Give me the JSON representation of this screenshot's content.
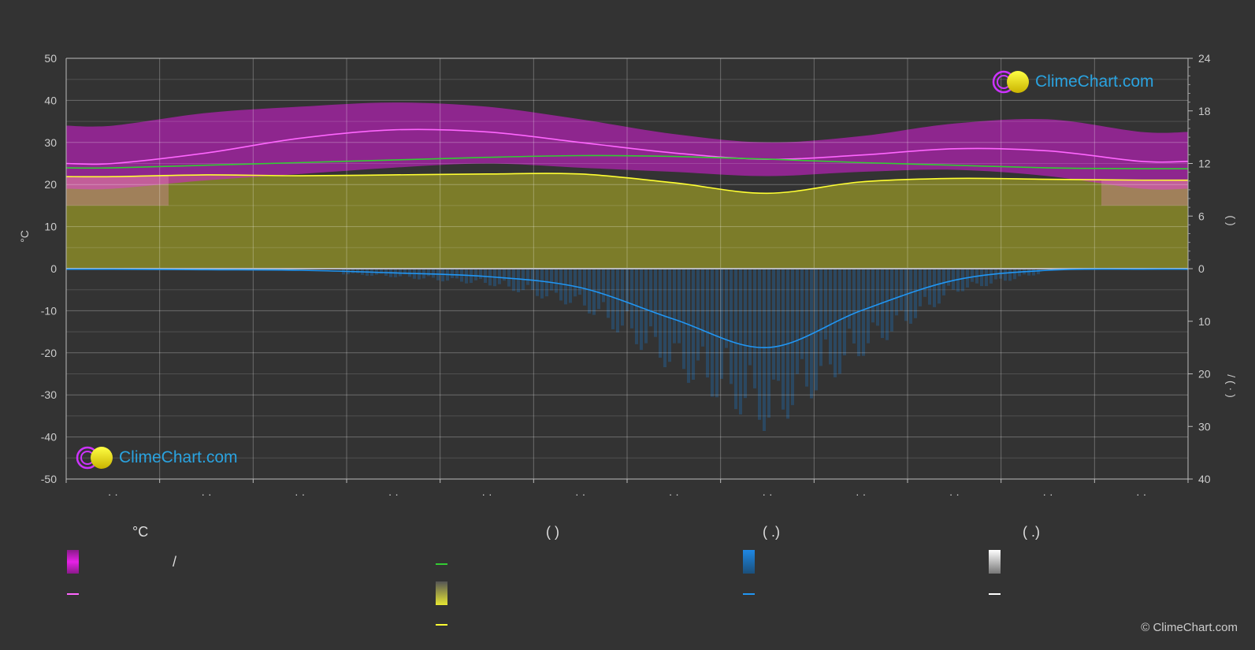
{
  "chart_data": {
    "type": "area",
    "y_left": {
      "label": "°C",
      "ticks": [
        50,
        40,
        30,
        20,
        10,
        0,
        -10,
        -20,
        -30,
        -40,
        -50
      ],
      "range": [
        -50,
        50
      ]
    },
    "y_right_top": {
      "label": "(    )",
      "ticks": [
        24,
        18,
        12,
        6,
        0
      ],
      "range": [
        0,
        24
      ]
    },
    "y_right_bottom": {
      "label": "/    (  ·  )",
      "ticks": [
        0,
        10,
        20,
        30,
        40
      ],
      "range": [
        0,
        40
      ]
    },
    "x_tick_labels": [
      "· ·",
      "· ·",
      "· ·",
      "· ·",
      "· ·",
      "· ·",
      "· ·",
      "· ·",
      "· ·",
      "· ·",
      "· ·",
      "· ·"
    ],
    "months": [
      1,
      2,
      3,
      4,
      5,
      6,
      7,
      8,
      9,
      10,
      11,
      12
    ],
    "series": [
      {
        "color": "#ff66ff",
        "axis": "temperature",
        "values": [
          25,
          27.5,
          31,
          33,
          32.5,
          30,
          27.5,
          26,
          27,
          28.5,
          28,
          25.5
        ]
      },
      {
        "color": "#33cc33",
        "axis": "hours",
        "values": [
          11.5,
          11.8,
          12.1,
          12.4,
          12.7,
          12.9,
          12.8,
          12.5,
          12.1,
          11.8,
          11.5,
          11.4
        ]
      },
      {
        "color": "#ffff33",
        "axis": "hours",
        "values": [
          10.5,
          10.7,
          10.6,
          10.7,
          10.8,
          10.8,
          9.8,
          8.6,
          9.9,
          10.3,
          10.2,
          10.1
        ]
      },
      {
        "color": "#2196f3",
        "axis": "precipitation",
        "values": [
          0.1,
          0.2,
          0.3,
          0.8,
          1.5,
          3.6,
          9.6,
          15,
          8,
          2.2,
          0.3,
          0.1
        ]
      }
    ],
    "bands": [
      {
        "color": "#d81bd8",
        "axis": "temperature",
        "upper": [
          34,
          37,
          38.5,
          39.5,
          38.5,
          35.5,
          32,
          30,
          31.5,
          34.5,
          35.5,
          32.5
        ],
        "lower": [
          19,
          21,
          22.5,
          24,
          25,
          24,
          23,
          22,
          23,
          23.5,
          22,
          19
        ]
      },
      {
        "color": "#8a8a28",
        "axis": "hours",
        "upper": [
          10.5,
          10.7,
          10.6,
          10.7,
          10.8,
          10.8,
          9.8,
          8.6,
          9.9,
          10.3,
          10.2,
          10.1
        ]
      }
    ]
  },
  "legend": {
    "col1": {
      "heading": "°C",
      "row1_text": "/"
    },
    "col2": {
      "heading": "(          )"
    },
    "col3": {
      "heading": "(   .)"
    },
    "col4": {
      "heading": "(   .)"
    },
    "colors": {
      "temp_band": "#e621e6",
      "temp_line": "#ff66ff",
      "daylight": "#33cc33",
      "sunshine_band": "#e6e633",
      "sunshine_line": "#ffff33",
      "rain_band": "#1e88e5",
      "rain_line": "#2196f3",
      "snow_band": "#ffffff",
      "snow_line": "#ffffff"
    }
  },
  "watermark": {
    "text": "ClimeChart.com"
  },
  "copyright": "© ClimeChart.com"
}
